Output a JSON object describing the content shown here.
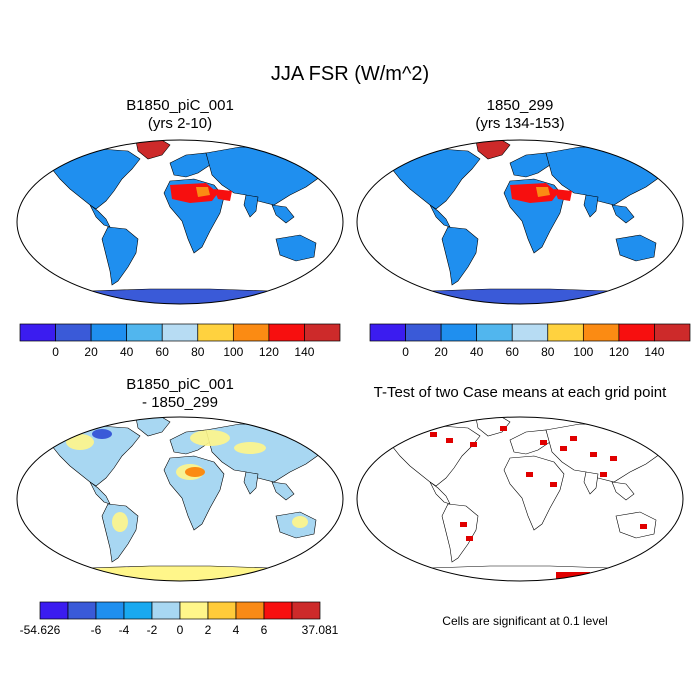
{
  "figure": {
    "title": "JJA FSR (W/m^2)"
  },
  "panels": [
    {
      "title_line1": "B1850_piC_001",
      "title_line2": "(yrs 2-10)",
      "colorbar": {
        "colors": [
          "#3b1cf0",
          "#3a5ad8",
          "#1f8fef",
          "#51b6ee",
          "#b7dcf3",
          "#ffd23f",
          "#fb8b13",
          "#f70f0f",
          "#cd2a2a"
        ],
        "labels": [
          "0",
          "20",
          "40",
          "60",
          "80",
          "100",
          "120",
          "140"
        ]
      }
    },
    {
      "title_line1": "1850_299",
      "title_line2": "(yrs 134-153)",
      "colorbar": {
        "colors": [
          "#3b1cf0",
          "#3a5ad8",
          "#1f8fef",
          "#51b6ee",
          "#b7dcf3",
          "#ffd23f",
          "#fb8b13",
          "#f70f0f",
          "#cd2a2a"
        ],
        "labels": [
          "0",
          "20",
          "40",
          "60",
          "80",
          "100",
          "120",
          "140"
        ]
      }
    },
    {
      "title_line1": "B1850_piC_001",
      "title_line2": "- 1850_299",
      "colorbar": {
        "colors": [
          "#3b1cf0",
          "#3a5ad8",
          "#1f8fef",
          "#19a9f0",
          "#a8d7f2",
          "#fff68a",
          "#ffcb3a",
          "#f98a16",
          "#f70f0f",
          "#cd2a2a"
        ],
        "labels": [
          "-54.626",
          "-6",
          "-4",
          "-2",
          "0",
          "2",
          "4",
          "6",
          "37.081"
        ]
      }
    },
    {
      "title_line1": "T-Test of two Case means at each grid point",
      "note": "Cells are significant at 0.1 level"
    }
  ],
  "colors": {
    "ocean": "#ffffff",
    "land_base": "#1f8fef",
    "antarctica": "#3a5ad8",
    "desert_hot": "#f70f0f",
    "desert_warm": "#fb8b13",
    "greenland": "#cd2a2a",
    "diff_land": "#a8d7f2",
    "diff_antarctica": "#fff68a",
    "significant": "#e00000"
  }
}
